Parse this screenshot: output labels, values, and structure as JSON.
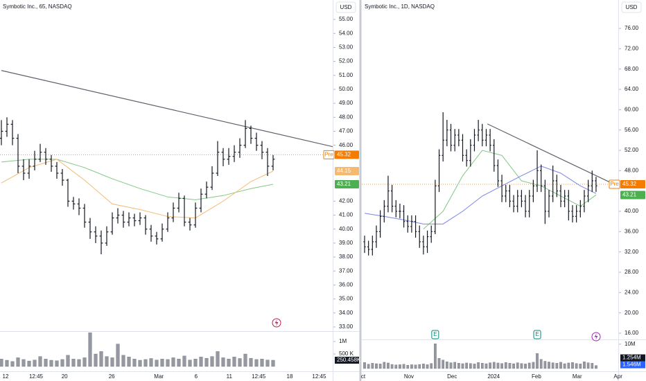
{
  "chart_data": [
    {
      "type": "ohlc",
      "title": "Symbotic Inc., 65, NASDAQ",
      "currency": "USD",
      "bar_color": "#131722",
      "ylim": [
        32.7,
        55.5
      ],
      "yticks": [
        {
          "value": 33,
          "label": "33.00"
        },
        {
          "value": 34,
          "label": "34.00"
        },
        {
          "value": 35,
          "label": "35.00"
        },
        {
          "value": 36,
          "label": "36.00"
        },
        {
          "value": 37,
          "label": "37.00"
        },
        {
          "value": 38,
          "label": "38.00"
        },
        {
          "value": 39,
          "label": "39.00"
        },
        {
          "value": 40,
          "label": "40.00"
        },
        {
          "value": 41,
          "label": "41.00"
        },
        {
          "value": 42,
          "label": "42.00"
        },
        {
          "value": 46,
          "label": "46.00"
        },
        {
          "value": 47,
          "label": "47.00"
        },
        {
          "value": 48,
          "label": "48.00"
        },
        {
          "value": 49,
          "label": "49.00"
        },
        {
          "value": 50,
          "label": "50.00"
        },
        {
          "value": 51,
          "label": "51.00"
        },
        {
          "value": 52,
          "label": "52.00"
        },
        {
          "value": 53,
          "label": "53.00"
        },
        {
          "value": 54,
          "label": "54.00"
        },
        {
          "value": 55,
          "label": "55.00"
        }
      ],
      "xticks": [
        {
          "value": 0.75,
          "label": "12"
        },
        {
          "value": 6.25,
          "label": "12:45"
        },
        {
          "value": 11.4,
          "label": "20"
        },
        {
          "value": 19.9,
          "label": "26"
        },
        {
          "value": 28.4,
          "label": "Mar"
        },
        {
          "value": 35.1,
          "label": "6"
        },
        {
          "value": 41.1,
          "label": "11"
        },
        {
          "value": 46.4,
          "label": "12:45"
        },
        {
          "value": 52,
          "label": "18"
        },
        {
          "value": 57.3,
          "label": "12:45"
        }
      ],
      "bars": [
        [
          46.5,
          47.8,
          46.0,
          47.0
        ],
        [
          47.0,
          48.0,
          46.6,
          47.5
        ],
        [
          47.5,
          47.8,
          46.0,
          46.5
        ],
        [
          46.5,
          46.8,
          44.0,
          44.5
        ],
        [
          44.5,
          45.0,
          43.5,
          44.0
        ],
        [
          44.0,
          45.0,
          43.6,
          44.5
        ],
        [
          44.5,
          45.6,
          44.2,
          45.0
        ],
        [
          45.0,
          46.1,
          44.8,
          45.5
        ],
        [
          45.5,
          45.8,
          44.6,
          45.0
        ],
        [
          45.0,
          45.3,
          44.1,
          44.5
        ],
        [
          44.5,
          44.8,
          43.6,
          44.0
        ],
        [
          44.0,
          44.3,
          43.1,
          43.5
        ],
        [
          43.5,
          43.6,
          41.6,
          42.0
        ],
        [
          42.0,
          42.3,
          41.4,
          41.8
        ],
        [
          41.8,
          42.2,
          41.0,
          41.5
        ],
        [
          41.5,
          41.8,
          40.1,
          40.5
        ],
        [
          40.5,
          40.8,
          39.3,
          39.8
        ],
        [
          39.8,
          40.2,
          39.0,
          39.5
        ],
        [
          39.5,
          39.9,
          38.2,
          39.0
        ],
        [
          39.0,
          40.2,
          38.8,
          39.8
        ],
        [
          39.8,
          41.2,
          39.6,
          40.8
        ],
        [
          40.8,
          41.5,
          40.4,
          41.0
        ],
        [
          41.0,
          41.3,
          40.1,
          40.5
        ],
        [
          40.5,
          41.2,
          40.2,
          40.8
        ],
        [
          40.8,
          41.1,
          40.2,
          40.6
        ],
        [
          40.6,
          41.2,
          40.3,
          40.8
        ],
        [
          40.8,
          41.0,
          39.6,
          40.0
        ],
        [
          40.0,
          40.3,
          39.1,
          39.5
        ],
        [
          39.5,
          39.8,
          38.9,
          39.3
        ],
        [
          39.3,
          40.4,
          39.1,
          40.0
        ],
        [
          40.0,
          41.2,
          39.8,
          40.8
        ],
        [
          40.8,
          41.9,
          40.5,
          41.5
        ],
        [
          41.5,
          42.6,
          41.2,
          42.2
        ],
        [
          42.2,
          42.4,
          40.2,
          40.5
        ],
        [
          40.5,
          40.8,
          39.9,
          40.3
        ],
        [
          40.3,
          41.9,
          40.1,
          41.5
        ],
        [
          41.5,
          42.9,
          41.2,
          42.5
        ],
        [
          42.5,
          43.4,
          42.2,
          43.0
        ],
        [
          43.0,
          44.5,
          42.8,
          44.0
        ],
        [
          44.0,
          46.3,
          43.8,
          45.5
        ],
        [
          45.5,
          45.8,
          44.5,
          45.0
        ],
        [
          45.0,
          45.8,
          44.6,
          45.2
        ],
        [
          45.2,
          46.0,
          44.8,
          45.5
        ],
        [
          45.5,
          46.5,
          45.1,
          46.0
        ],
        [
          46.0,
          47.8,
          45.8,
          47.2
        ],
        [
          47.2,
          47.4,
          46.1,
          46.5
        ],
        [
          46.5,
          46.9,
          45.6,
          46.0
        ],
        [
          46.0,
          46.3,
          45.0,
          45.5
        ],
        [
          45.5,
          45.8,
          43.8,
          44.5
        ],
        [
          44.5,
          45.3,
          44.2,
          45.0
        ]
      ],
      "ma": [
        {
          "color": "#81c784",
          "x": [
            0,
            5,
            10,
            15,
            20,
            25,
            30,
            35,
            40,
            45,
            49
          ],
          "values": [
            44.8,
            45.0,
            45.0,
            44.4,
            43.6,
            42.9,
            42.3,
            42.1,
            42.4,
            42.9,
            43.21
          ]
        },
        {
          "color": "#f5b971",
          "x": [
            0,
            5,
            10,
            15,
            20,
            25,
            30,
            35,
            40,
            45,
            49
          ],
          "values": [
            43.3,
            44.4,
            45.0,
            43.5,
            41.8,
            41.4,
            40.9,
            40.8,
            42.0,
            43.4,
            44.15
          ]
        }
      ],
      "trendline": {
        "color": "#5d606b",
        "x": [
          0,
          59.75
        ],
        "values": [
          51.35,
          45.9
        ]
      },
      "pre_label": "Pre",
      "price_labels": [
        {
          "value": 45.32,
          "label": "45.32",
          "color": "#f57c00",
          "line": true
        },
        {
          "value": 44.15,
          "label": "44.15",
          "color": "#f5b971"
        },
        {
          "value": 43.21,
          "label": "43.21",
          "color": "#4caf50"
        }
      ],
      "volume": [
        300000,
        250000,
        200000,
        350000,
        280000,
        220000,
        260000,
        400000,
        300000,
        250000,
        230000,
        280000,
        450000,
        300000,
        280000,
        350000,
        1350000,
        500000,
        600000,
        400000,
        350000,
        900000,
        450000,
        380000,
        300000,
        250000,
        280000,
        320000,
        260000,
        300000,
        280000,
        350000,
        300000,
        420000,
        260000,
        300000,
        380000,
        330000,
        400000,
        600000,
        350000,
        300000,
        380000,
        320000,
        500000,
        330000,
        280000,
        300000,
        260000,
        250458
      ],
      "volume_lim": [
        0,
        1360000
      ],
      "volume_ticks": [
        {
          "value": 1000000,
          "label": "1M"
        },
        {
          "value": 500000,
          "label": "500 K"
        }
      ],
      "volume_labels": [
        {
          "value": 250458,
          "label": "250.458K",
          "color": "#131722"
        }
      ]
    },
    {
      "type": "ohlc",
      "title": "Symbotic Inc., 1D, NASDAQ",
      "currency": "USD",
      "bar_color": "#131722",
      "ylim": [
        14.77,
        79.14
      ],
      "yticks": [
        {
          "value": 16,
          "label": "16.00"
        },
        {
          "value": 20,
          "label": "20.00"
        },
        {
          "value": 24,
          "label": "24.00"
        },
        {
          "value": 28,
          "label": "28.00"
        },
        {
          "value": 32,
          "label": "32.00"
        },
        {
          "value": 36,
          "label": "36.00"
        },
        {
          "value": 40,
          "label": "40.00"
        },
        {
          "value": 48,
          "label": "48.00"
        },
        {
          "value": 52,
          "label": "52.00"
        },
        {
          "value": 56,
          "label": "56.00"
        },
        {
          "value": 60,
          "label": "60.00"
        },
        {
          "value": 64,
          "label": "64.00"
        },
        {
          "value": 68,
          "label": "68.00"
        },
        {
          "value": 72,
          "label": "72.00"
        },
        {
          "value": 76,
          "label": "76.00"
        }
      ],
      "xticks": [
        {
          "value": -0.35,
          "label": "ct"
        },
        {
          "value": 11.3,
          "label": "Nov"
        },
        {
          "value": 22.3,
          "label": "Dec"
        },
        {
          "value": 32.9,
          "label": "2024"
        },
        {
          "value": 43.8,
          "label": "Feb"
        },
        {
          "value": 54.2,
          "label": "Mar"
        },
        {
          "value": 64.6,
          "label": "Apr"
        }
      ],
      "bars": [
        [
          34,
          35.2,
          31.8,
          33
        ],
        [
          33,
          34.2,
          31.3,
          32.5
        ],
        [
          32.5,
          35.2,
          31.3,
          34
        ],
        [
          34,
          37.2,
          32.8,
          36
        ],
        [
          36,
          40.2,
          34.8,
          39
        ],
        [
          39,
          42.2,
          37.8,
          41
        ],
        [
          41,
          47,
          39.8,
          44
        ],
        [
          44,
          45.2,
          39.8,
          41
        ],
        [
          41,
          42.2,
          38.8,
          40
        ],
        [
          40,
          41.5,
          38.6,
          40
        ],
        [
          40,
          41.2,
          36.8,
          38
        ],
        [
          38,
          39.2,
          35.8,
          37
        ],
        [
          37,
          39.2,
          35.8,
          38
        ],
        [
          38,
          39.2,
          34.8,
          36
        ],
        [
          36,
          37.2,
          32.8,
          34
        ],
        [
          34,
          35.2,
          31.5,
          33
        ],
        [
          33,
          36.2,
          31.8,
          35
        ],
        [
          35,
          37.2,
          33.8,
          36
        ],
        [
          36,
          46.2,
          35.5,
          45
        ],
        [
          45,
          52.2,
          43.8,
          51
        ],
        [
          51,
          59.5,
          49.8,
          54
        ],
        [
          54,
          58,
          52.8,
          56
        ],
        [
          56,
          57.2,
          51.8,
          53
        ],
        [
          53,
          56.2,
          51.8,
          55
        ],
        [
          55,
          56.2,
          52.8,
          54
        ],
        [
          54,
          55.2,
          49.8,
          51
        ],
        [
          51,
          52.2,
          48.8,
          50
        ],
        [
          50,
          54.2,
          48.8,
          53
        ],
        [
          53,
          56.2,
          51.8,
          55
        ],
        [
          55,
          58,
          53.8,
          56
        ],
        [
          56,
          57.2,
          52.8,
          54
        ],
        [
          54,
          56.2,
          52.8,
          55
        ],
        [
          55,
          56.2,
          51.8,
          53
        ],
        [
          53,
          54.2,
          47.8,
          49
        ],
        [
          49,
          50.2,
          44.8,
          46
        ],
        [
          46,
          47.2,
          41.8,
          43
        ],
        [
          43,
          45.2,
          41.8,
          44
        ],
        [
          44,
          45.2,
          40.8,
          42
        ],
        [
          42,
          43.2,
          39.8,
          41
        ],
        [
          41,
          44.2,
          39.8,
          43
        ],
        [
          43,
          44.2,
          40.8,
          42
        ],
        [
          42,
          43.2,
          38.8,
          40
        ],
        [
          40,
          44.2,
          38.8,
          43
        ],
        [
          43,
          46.2,
          41.8,
          45
        ],
        [
          45,
          52,
          43.8,
          48
        ],
        [
          48,
          49.2,
          43.8,
          45
        ],
        [
          45,
          46.2,
          37.5,
          40
        ],
        [
          40,
          44.2,
          38.8,
          43
        ],
        [
          43,
          49,
          41.8,
          46
        ],
        [
          46,
          47.2,
          42.8,
          44
        ],
        [
          44,
          45.2,
          40.8,
          42
        ],
        [
          42,
          44.2,
          40.8,
          43
        ],
        [
          43,
          44.2,
          38.2,
          40
        ],
        [
          40,
          41.2,
          37.8,
          39
        ],
        [
          39,
          41.2,
          37.8,
          40
        ],
        [
          40,
          42.2,
          38.8,
          41
        ],
        [
          41,
          44.2,
          39.8,
          43
        ],
        [
          43,
          46.2,
          41.8,
          45
        ],
        [
          45,
          48,
          43.8,
          46
        ],
        [
          46,
          46.8,
          43.8,
          45
        ]
      ],
      "ma": [
        {
          "color": "#81c784",
          "x": [
            0,
            5,
            10,
            15,
            20,
            25,
            30,
            35,
            40,
            45,
            50,
            55,
            59
          ],
          "values": [
            null,
            null,
            null,
            36.5,
            40,
            47,
            52,
            51,
            46,
            45,
            43,
            41,
            43.21
          ]
        },
        {
          "color": "#7b83e8",
          "x": [
            0,
            5,
            10,
            15,
            20,
            25,
            30,
            35,
            40,
            45,
            50,
            55,
            59
          ],
          "values": [
            39.6,
            39.0,
            38.3,
            37.5,
            37.5,
            40,
            43,
            45,
            47,
            48.9,
            47.5,
            45,
            43.5
          ]
        }
      ],
      "trendline": {
        "color": "#5d606b",
        "x": [
          31.3,
          63.4
        ],
        "values": [
          57.2,
          45.4
        ]
      },
      "pre_label": "Pre",
      "price_labels": [
        {
          "value": 45.32,
          "label": "45.32",
          "color": "#f57c00",
          "line": true
        },
        {
          "value": 43.21,
          "label": "43.21",
          "color": "#4caf50"
        }
      ],
      "events": [
        {
          "index": 18,
          "label": "E"
        },
        {
          "index": 44,
          "label": "E"
        }
      ],
      "volume": [
        2500000,
        1800000,
        2200000,
        2000000,
        1900000,
        2600000,
        2300000,
        1700000,
        1500000,
        1600000,
        1800000,
        1400000,
        1600000,
        1500000,
        1700000,
        1900000,
        1600000,
        2100000,
        10200000,
        4200000,
        3500000,
        2800000,
        2400000,
        2600000,
        2200000,
        2000000,
        2300000,
        2100000,
        1900000,
        2500000,
        2200000,
        2000000,
        2400000,
        2600000,
        2300000,
        2100000,
        2500000,
        2200000,
        2000000,
        2400000,
        2100000,
        1900000,
        2300000,
        2600000,
        6200000,
        3800000,
        3000000,
        2700000,
        2400000,
        2200000,
        2600000,
        2000000,
        2300000,
        2500000,
        2100000,
        1900000,
        2800000,
        2400000,
        2200000,
        1254000
      ],
      "volume_lim": [
        0,
        11400000
      ],
      "volume_ticks": [
        {
          "value": 10000000,
          "label": "10M"
        }
      ],
      "volume_labels": [
        {
          "value": 1546000,
          "label": "1.546M",
          "color": "#2962ff"
        },
        {
          "value": 1254000,
          "label": "1.254M",
          "color": "#131722"
        }
      ]
    }
  ]
}
